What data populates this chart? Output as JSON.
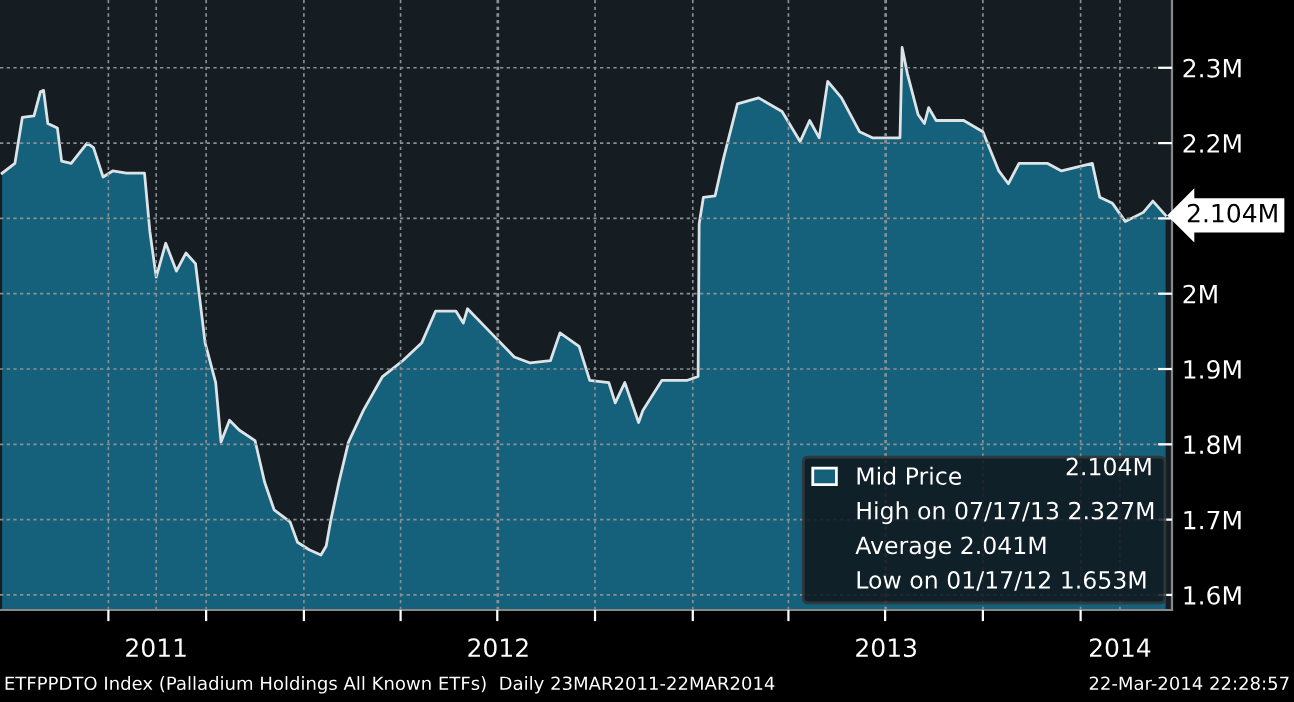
{
  "chart_data": {
    "type": "area",
    "x": [
      "2011-03-23",
      "2011-04-04",
      "2011-04-11",
      "2011-04-22",
      "2011-04-28",
      "2011-05-01",
      "2011-05-05",
      "2011-05-14",
      "2011-05-18",
      "2011-05-27",
      "2011-06-11",
      "2011-06-17",
      "2011-06-26",
      "2011-07-05",
      "2011-07-18",
      "2011-08-04",
      "2011-08-09",
      "2011-08-15",
      "2011-08-24",
      "2011-09-03",
      "2011-09-12",
      "2011-09-21",
      "2011-09-30",
      "2011-10-10",
      "2011-10-15",
      "2011-10-23",
      "2011-11-01",
      "2011-11-16",
      "2011-11-25",
      "2011-12-04",
      "2011-12-19",
      "2011-12-26",
      "2012-01-06",
      "2012-01-17",
      "2012-01-22",
      "2012-01-26",
      "2012-02-03",
      "2012-02-12",
      "2012-02-26",
      "2012-03-15",
      "2012-04-03",
      "2012-04-21",
      "2012-05-04",
      "2012-05-23",
      "2012-05-30",
      "2012-06-03",
      "2012-06-25",
      "2012-07-17",
      "2012-08-01",
      "2012-08-20",
      "2012-08-29",
      "2012-09-16",
      "2012-09-26",
      "2012-10-14",
      "2012-10-20",
      "2012-10-29",
      "2012-11-11",
      "2012-11-15",
      "2012-12-03",
      "2012-12-27",
      "2013-01-06",
      "2013-01-07",
      "2013-01-11",
      "2013-01-22",
      "2013-01-30",
      "2013-02-12",
      "2013-03-04",
      "2013-03-26",
      "2013-04-12",
      "2013-04-21",
      "2013-04-30",
      "2013-05-08",
      "2013-05-21",
      "2013-06-07",
      "2013-06-19",
      "2013-07-15",
      "2013-07-17",
      "2013-07-22",
      "2013-08-01",
      "2013-08-07",
      "2013-08-11",
      "2013-08-18",
      "2013-09-13",
      "2013-10-01",
      "2013-10-16",
      "2013-10-25",
      "2013-11-04",
      "2013-12-01",
      "2013-12-14",
      "2014-01-12",
      "2014-01-19",
      "2014-01-31",
      "2014-02-12",
      "2014-03-01",
      "2014-03-10",
      "2014-03-22"
    ],
    "series": [
      {
        "name": "Mid Price",
        "color": "#15607a",
        "values": [
          2.16,
          2.173,
          2.234,
          2.236,
          2.268,
          2.27,
          2.226,
          2.22,
          2.176,
          2.173,
          2.2,
          2.194,
          2.155,
          2.163,
          2.16,
          2.16,
          2.083,
          2.022,
          2.067,
          2.03,
          2.054,
          2.04,
          1.935,
          1.882,
          1.803,
          1.832,
          1.819,
          1.805,
          1.75,
          1.713,
          1.697,
          1.67,
          1.66,
          1.653,
          1.665,
          1.697,
          1.75,
          1.803,
          1.845,
          1.89,
          1.911,
          1.935,
          1.977,
          1.977,
          1.961,
          1.98,
          1.948,
          1.916,
          1.908,
          1.911,
          1.948,
          1.93,
          1.885,
          1.882,
          1.855,
          1.882,
          1.829,
          1.845,
          1.885,
          1.885,
          1.89,
          2.093,
          2.128,
          2.13,
          2.18,
          2.252,
          2.26,
          2.242,
          2.202,
          2.23,
          2.207,
          2.282,
          2.26,
          2.215,
          2.207,
          2.207,
          2.327,
          2.292,
          2.238,
          2.226,
          2.247,
          2.23,
          2.23,
          2.215,
          2.163,
          2.146,
          2.173,
          2.173,
          2.163,
          2.173,
          2.128,
          2.12,
          2.096,
          2.108,
          2.123,
          2.104
        ]
      }
    ],
    "xlim": [
      "2011-03-21",
      "2014-03-28"
    ],
    "xticks": [
      {
        "value": "2011-07-01",
        "label": null
      },
      {
        "value": "2011-10-01",
        "label": null
      },
      {
        "value": "2012-01-01",
        "label": null
      },
      {
        "value": "2012-04-01",
        "label": null
      },
      {
        "value": "2012-07-01",
        "label": null
      },
      {
        "value": "2012-10-01",
        "label": null
      },
      {
        "value": "2013-01-01",
        "label": null
      },
      {
        "value": "2013-04-01",
        "label": null
      },
      {
        "value": "2013-07-01",
        "label": null
      },
      {
        "value": "2013-10-01",
        "label": null
      },
      {
        "value": "2014-01-01",
        "label": null
      },
      {
        "value": "2011-08-15",
        "label": "2011"
      },
      {
        "value": "2012-07-02",
        "label": "2012"
      },
      {
        "value": "2013-07-02",
        "label": "2013"
      },
      {
        "value": "2014-02-07",
        "label": "2014"
      }
    ],
    "ylim": [
      1.58,
      2.39
    ],
    "yticks": [
      {
        "value": 1.6,
        "label": "1.6M"
      },
      {
        "value": 1.7,
        "label": "1.7M"
      },
      {
        "value": 1.8,
        "label": "1.8M"
      },
      {
        "value": 1.9,
        "label": "1.9M"
      },
      {
        "value": 2.0,
        "label": "2M"
      },
      {
        "value": 2.1,
        "label": null
      },
      {
        "value": 2.2,
        "label": "2.2M"
      },
      {
        "value": 2.3,
        "label": "2.3M"
      }
    ],
    "grid": true,
    "legend": "bottom right",
    "annotations": [
      {
        "text": "2.104M",
        "x": "2014-03-22",
        "y": 2.104
      },
      "2.104M",
      "High on 07/17/13 2.327M",
      "Average 2.041M",
      "Low on 01/17/12 1.653M",
      "ETFPPDTO Index (Palladium Holdings All Known ETFs)  Daily 23MAR2011-22MAR2014",
      "22-Mar-2014 22:28:57"
    ]
  }
}
